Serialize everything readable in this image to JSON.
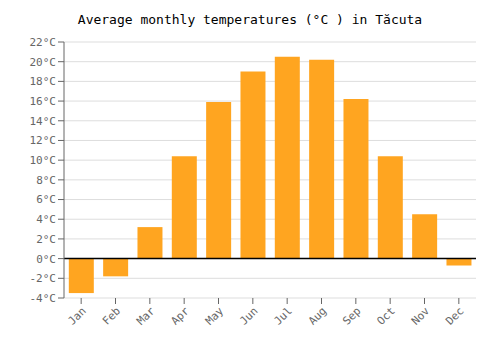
{
  "chart_data": {
    "type": "bar",
    "title": "Average monthly temperatures (°C ) in Tăcuta",
    "categories": [
      "Jan",
      "Feb",
      "Mar",
      "Apr",
      "May",
      "Jun",
      "Jul",
      "Aug",
      "Sep",
      "Oct",
      "Nov",
      "Dec"
    ],
    "values": [
      -3.5,
      -1.8,
      3.2,
      10.4,
      15.9,
      19.0,
      20.5,
      20.2,
      16.2,
      10.4,
      4.5,
      -0.7
    ],
    "color": "#FFA520",
    "ylim": [
      -4,
      22
    ],
    "yticks": [
      {
        "value": -4,
        "label": "-4°C"
      },
      {
        "value": -2,
        "label": "-2°C"
      },
      {
        "value": 0,
        "label": "0°C"
      },
      {
        "value": 2,
        "label": "2°C"
      },
      {
        "value": 4,
        "label": "4°C"
      },
      {
        "value": 6,
        "label": "6°C"
      },
      {
        "value": 8,
        "label": "8°C"
      },
      {
        "value": 10,
        "label": "10°C"
      },
      {
        "value": 12,
        "label": "12°C"
      },
      {
        "value": 14,
        "label": "14°C"
      },
      {
        "value": 16,
        "label": "16°C"
      },
      {
        "value": 18,
        "label": "18°C"
      },
      {
        "value": 20,
        "label": "20°C"
      },
      {
        "value": 22,
        "label": "22°C"
      }
    ],
    "grid": true
  }
}
